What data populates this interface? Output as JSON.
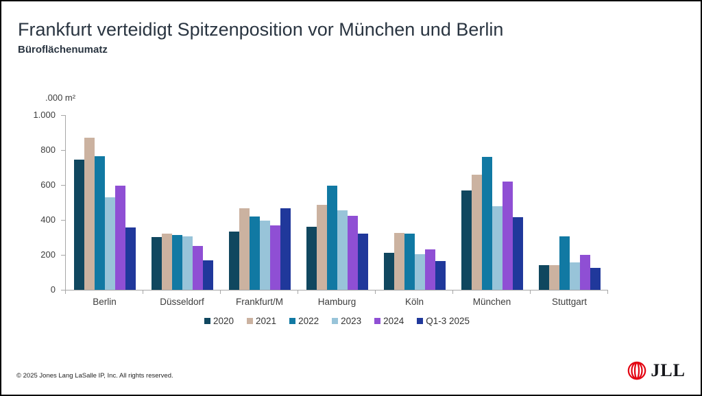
{
  "header": {
    "title": "Frankfurt verteidigt Spitzenposition vor München und Berlin",
    "subtitle": "Büroflächenumatz"
  },
  "chart_data": {
    "type": "bar",
    "title": "Büroflächenumatz",
    "unit_label": ".000 m²",
    "xlabel": "",
    "ylabel": ".000 m²",
    "ylim": [
      0,
      1000
    ],
    "grid": false,
    "legend_position": "bottom",
    "yticks_labels": [
      "1.000",
      "800",
      "600",
      "400",
      "200",
      "0"
    ],
    "ytick_values": [
      1000,
      800,
      600,
      400,
      200,
      0
    ],
    "categories": [
      "Berlin",
      "Düsseldorf",
      "Frankfurt/M",
      "Hamburg",
      "Köln",
      "München",
      "Stuttgart"
    ],
    "series": [
      {
        "name": "2020",
        "color": "#10475f",
        "values": [
          745,
          300,
          335,
          360,
          210,
          570,
          140
        ]
      },
      {
        "name": "2021",
        "color": "#cbb2a0",
        "values": [
          870,
          320,
          465,
          485,
          325,
          660,
          140
        ]
      },
      {
        "name": "2022",
        "color": "#1179a3",
        "values": [
          765,
          315,
          420,
          595,
          322,
          760,
          305
        ]
      },
      {
        "name": "2023",
        "color": "#98c4d9",
        "values": [
          530,
          305,
          395,
          455,
          205,
          480,
          155
        ]
      },
      {
        "name": "2024",
        "color": "#8f4fd4",
        "values": [
          595,
          250,
          370,
          425,
          230,
          620,
          200
        ]
      },
      {
        "name": "Q1-3 2025",
        "color": "#20389b",
        "values": [
          355,
          170,
          465,
          320,
          165,
          415,
          125
        ]
      }
    ]
  },
  "footer": {
    "copyright": "© 2025 Jones Lang LaSalle IP, Inc. All rights reserved.",
    "logo_text": "JLL"
  },
  "colors": {
    "axis_line": "#a6a6a6",
    "tick_text": "#3c3c3c",
    "title_text": "#2a3541",
    "logo_red": "#e30613"
  }
}
